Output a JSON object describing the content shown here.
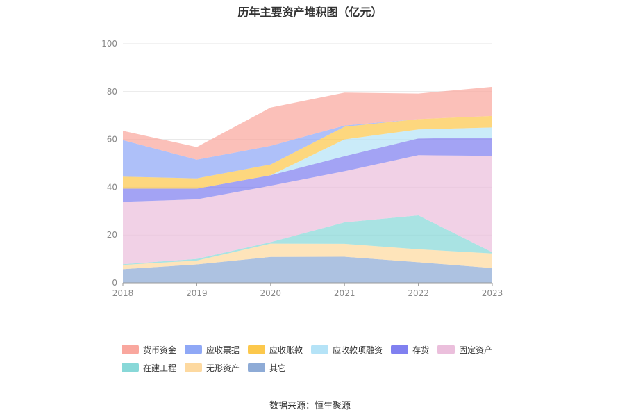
{
  "chart_data": {
    "type": "area",
    "stacked": true,
    "title": "历年主要资产堆积图（亿元）",
    "x": [
      "2018",
      "2019",
      "2020",
      "2021",
      "2022",
      "2023"
    ],
    "ylim": [
      0,
      100
    ],
    "yticks": [
      0,
      20,
      40,
      60,
      80,
      100
    ],
    "grid": true,
    "legend_position": "bottom",
    "series": [
      {
        "name": "其它",
        "color": "#8eabd6",
        "values": [
          5.7,
          7.7,
          10.8,
          10.9,
          8.6,
          6.2
        ]
      },
      {
        "name": "无形资产",
        "color": "#fdd9a0",
        "values": [
          1.8,
          1.6,
          5.6,
          5.4,
          5.4,
          6.1
        ]
      },
      {
        "name": "在建工程",
        "color": "#88d8d8",
        "values": [
          0.3,
          0.7,
          0.6,
          9.0,
          14.2,
          0.5
        ]
      },
      {
        "name": "固定资产",
        "color": "#ebbfdc",
        "values": [
          26.1,
          24.9,
          23.6,
          21.4,
          25.2,
          40.3
        ]
      },
      {
        "name": "存货",
        "color": "#8080f0",
        "values": [
          5.5,
          4.5,
          4.4,
          6.3,
          7.0,
          7.6
        ]
      },
      {
        "name": "应收款项融资",
        "color": "#b5e3f7",
        "values": [
          0.0,
          0.0,
          0.0,
          7.0,
          3.8,
          4.3
        ]
      },
      {
        "name": "应收账款",
        "color": "#fcc84c",
        "values": [
          5.0,
          4.3,
          4.5,
          5.3,
          4.3,
          4.8
        ]
      },
      {
        "name": "应收票据",
        "color": "#8fa8f6",
        "values": [
          15.3,
          7.8,
          7.8,
          0.5,
          0.0,
          0.0
        ]
      },
      {
        "name": "货币资金",
        "color": "#f9a79e",
        "values": [
          3.9,
          5.3,
          16.0,
          13.8,
          10.7,
          12.2
        ]
      }
    ],
    "legend_order": [
      "货币资金",
      "应收票据",
      "应收账款",
      "应收款项融资",
      "存货",
      "固定资产",
      "在建工程",
      "无形资产",
      "其它"
    ]
  },
  "source": "数据来源：恒生聚源"
}
